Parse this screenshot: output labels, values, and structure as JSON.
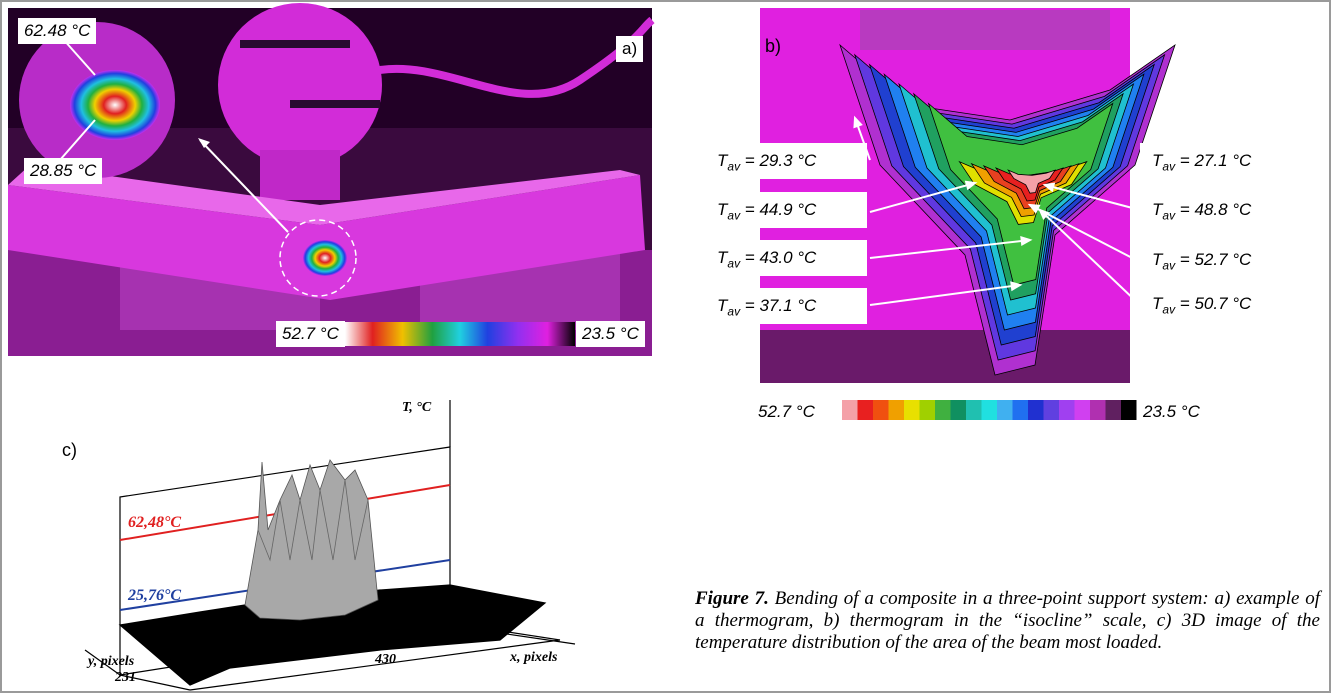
{
  "panel_a": {
    "label": "a)",
    "max_point": "62.48 °C",
    "min_point": "28.85 °C",
    "scale_max": "52.7 °C",
    "scale_min": "23.5 °C"
  },
  "panel_b": {
    "label": "b)",
    "annotations": [
      {
        "symbol": "T",
        "subscript": "av",
        "text": " = 29.3 °C"
      },
      {
        "symbol": "T",
        "subscript": "av",
        "text": " = 44.9 °C"
      },
      {
        "symbol": "T",
        "subscript": "av",
        "text": " = 43.0 °C"
      },
      {
        "symbol": "T",
        "subscript": "av",
        "text": " = 37.1 °C"
      },
      {
        "symbol": "T",
        "subscript": "av",
        "text": " = 27.1 °C"
      },
      {
        "symbol": "T",
        "subscript": "av",
        "text": " = 48.8 °C"
      },
      {
        "symbol": "T",
        "subscript": "av",
        "text": " = 52.7 °C"
      },
      {
        "symbol": "T",
        "subscript": "av",
        "text": " = 50.7 °C"
      }
    ],
    "scale_max": "52.7 °C",
    "scale_min": "23.5 °C"
  },
  "panel_c": {
    "label": "c)",
    "z_axis": "T, °C",
    "max_line": "62,48°C",
    "min_line": "25,76°C",
    "y_axis": "y, pixels",
    "x_axis": "x, pixels",
    "y_value": "231",
    "x_value": "430"
  },
  "caption": {
    "label": "Figure 7.",
    "text": " Bending of a composite in a three-point support system: a) example of a thermogram, b) thermogram in the “isocline” scale, c) 3D image of the temperature distribution of the area of the beam most loaded."
  }
}
